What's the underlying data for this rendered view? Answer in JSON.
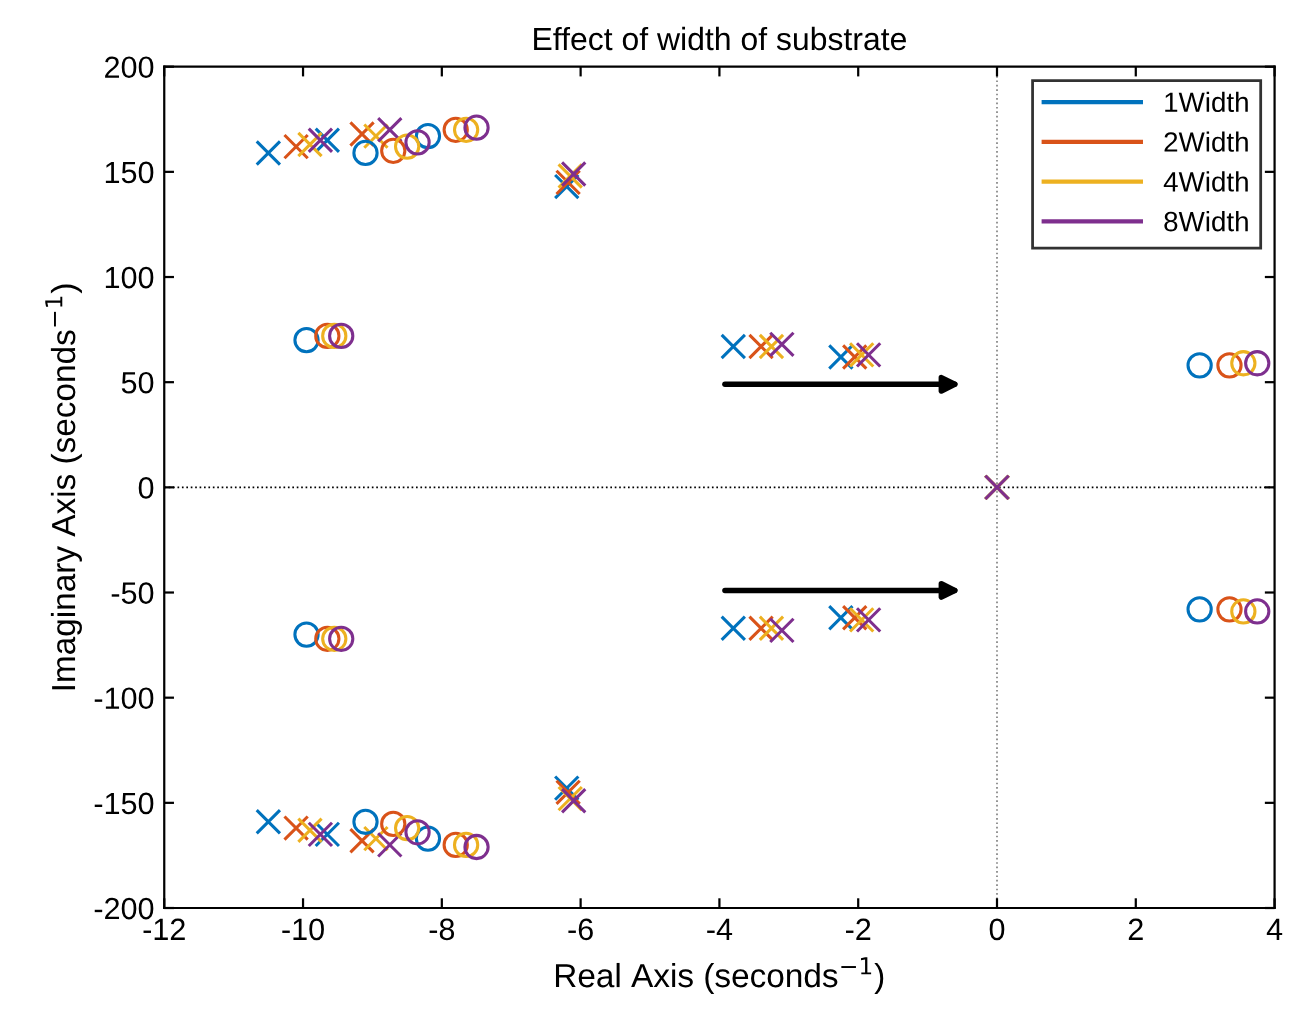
{
  "chart_data": {
    "type": "scatter",
    "title": "Effect of width of substrate",
    "xlabel": "Real Axis (seconds$^{−1}$)",
    "ylabel": "Imaginary Axis (seconds$^{−1}$)",
    "xlim": [
      -12,
      4
    ],
    "xticks": [
      -12,
      -10,
      -8,
      -6,
      -4,
      -2,
      0,
      2,
      4
    ],
    "ylim": [
      -200,
      200
    ],
    "yticks": [
      -200,
      -150,
      -100,
      -50,
      0,
      50,
      100,
      150,
      200
    ],
    "grid": false,
    "legend": "top right",
    "ref_lines": [
      {
        "axis": "x",
        "value": 0,
        "color": "#808080",
        "line_style": "dotted"
      },
      {
        "axis": "y",
        "value": 0,
        "color": "#000000",
        "line_style": "dotted"
      }
    ],
    "series": [
      {
        "name": "1Width",
        "color": "#0072bd",
        "marker": "cross",
        "x": [
          -10.5,
          -9.65,
          -6.2,
          -3.8,
          -2.25,
          0,
          -10.5,
          -9.65,
          -6.2,
          -3.8,
          -2.25
        ],
        "values": [
          159,
          165,
          143,
          67,
          62,
          0,
          -159,
          -165,
          -143,
          -67,
          -62
        ]
      },
      {
        "name": "2Width",
        "color": "#d95319",
        "marker": "cross",
        "x": [
          -10.1,
          -9.15,
          -6.18,
          -3.4,
          -2.05,
          0,
          -10.1,
          -9.15,
          -6.18,
          -3.4,
          -2.05
        ],
        "values": [
          162,
          168,
          145,
          67,
          62,
          0,
          -162,
          -168,
          -145,
          -67,
          -62
        ]
      },
      {
        "name": "4Width",
        "color": "#edb120",
        "marker": "cross",
        "x": [
          -9.9,
          -8.95,
          -6.15,
          -3.25,
          -1.95,
          0,
          -9.9,
          -8.95,
          -6.15,
          -3.25,
          -1.95
        ],
        "values": [
          163,
          167,
          148,
          67,
          63,
          0,
          -163,
          -167,
          -148,
          -67,
          -63
        ]
      },
      {
        "name": "8Width",
        "color": "#7e2f8e",
        "marker": "cross",
        "x": [
          -9.75,
          -8.75,
          -6.1,
          -3.1,
          -1.85,
          0,
          -9.75,
          -8.75,
          -6.1,
          -3.1,
          -1.85
        ],
        "values": [
          165,
          170,
          149,
          68,
          63,
          0,
          -165,
          -170,
          -149,
          -68,
          -63
        ]
      },
      {
        "color": "#0072bd",
        "marker": "circle",
        "x": [
          -9.1,
          -8.2,
          -9.95,
          2.92,
          -9.1,
          -8.2,
          -9.95,
          2.92
        ],
        "values": [
          159,
          167,
          70,
          58,
          -159,
          -167,
          -70,
          -58
        ]
      },
      {
        "color": "#d95319",
        "marker": "circle",
        "x": [
          -8.7,
          -7.8,
          -9.65,
          3.35,
          -8.7,
          -7.8,
          -9.65,
          3.35
        ],
        "values": [
          160,
          170,
          72,
          58,
          -160,
          -170,
          -72,
          -58
        ]
      },
      {
        "color": "#edb120",
        "marker": "circle",
        "x": [
          -8.5,
          -7.65,
          -9.55,
          3.55,
          -8.5,
          -7.65,
          -9.55,
          3.55
        ],
        "values": [
          162,
          170,
          72,
          59,
          -162,
          -170,
          -72,
          -59
        ]
      },
      {
        "color": "#7e2f8e",
        "marker": "circle",
        "x": [
          -8.35,
          -7.5,
          -9.45,
          3.75,
          -8.35,
          -7.5,
          -9.45,
          3.75
        ],
        "values": [
          164,
          171,
          72,
          59,
          -164,
          -171,
          -72,
          -59
        ]
      }
    ]
  }
}
